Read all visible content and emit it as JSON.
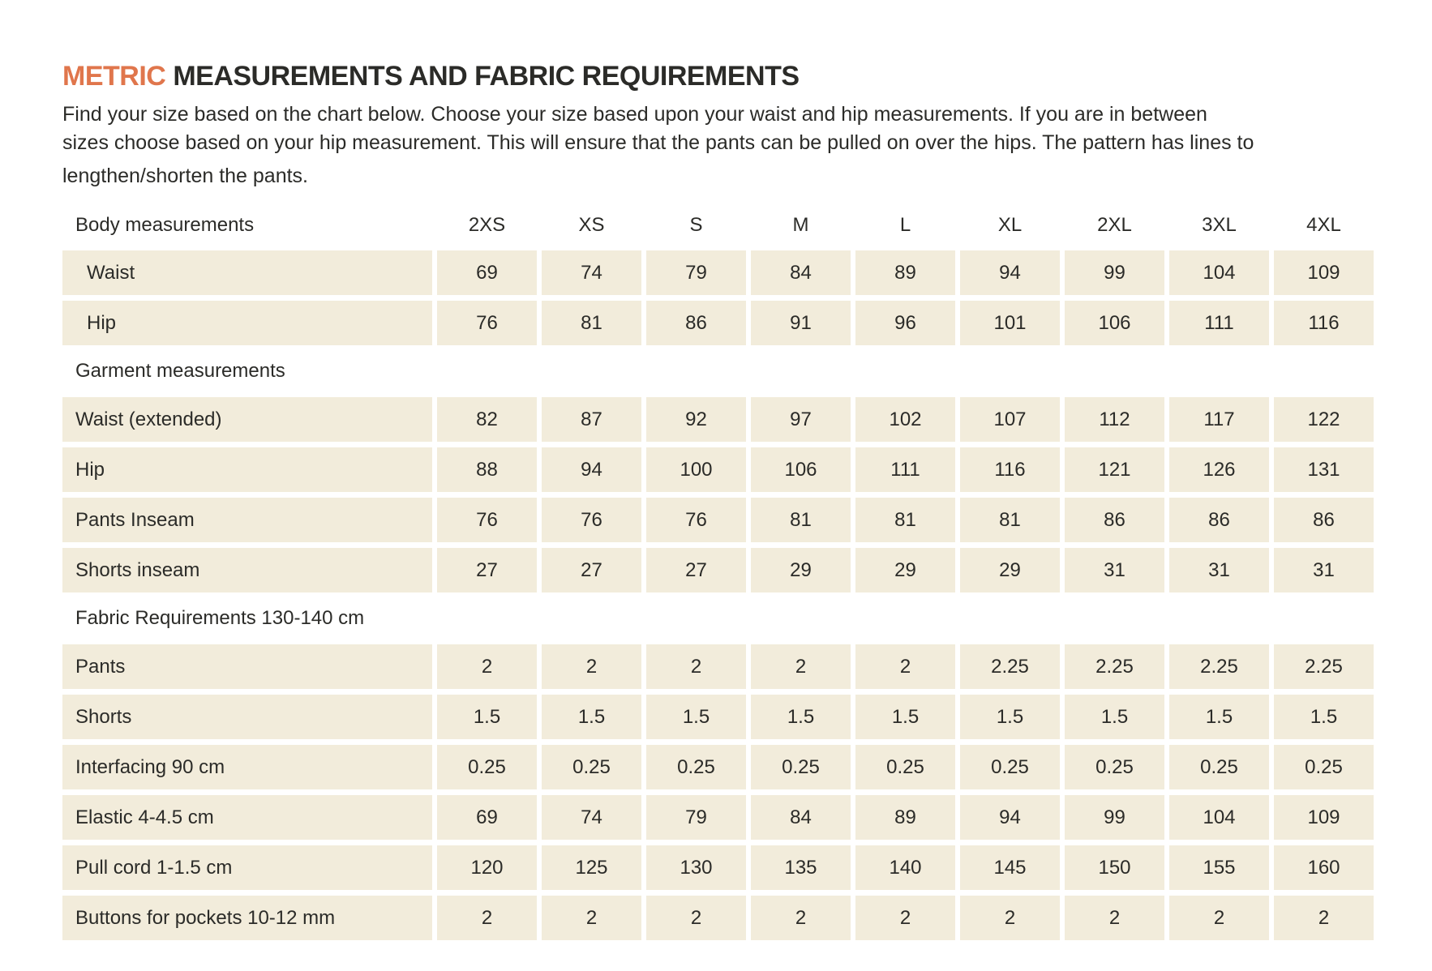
{
  "colors": {
    "accent": "#E0764C",
    "row_background": "#F2ECDB",
    "text": "#2B2B28"
  },
  "header": {
    "title_accent": "METRIC",
    "title_rest": "MEASUREMENTS AND FABRIC REQUIREMENTS",
    "intro_lines": [
      "Find your size based on the chart below. Choose your size based upon your waist and hip measurements. If you are in between",
      "sizes choose based on your hip measurement. This will ensure that the pants can be pulled on over the hips. The pattern has lines to",
      "lengthen/shorten the pants."
    ]
  },
  "table": {
    "size_columns": [
      "2XS",
      "XS",
      "S",
      "M",
      "L",
      "XL",
      "2XL",
      "3XL",
      "4XL"
    ],
    "sections": [
      {
        "label": "Body measurements",
        "rows": [
          {
            "label": "Waist",
            "indent": true,
            "values": [
              "69",
              "74",
              "79",
              "84",
              "89",
              "94",
              "99",
              "104",
              "109"
            ]
          },
          {
            "label": "Hip",
            "indent": true,
            "values": [
              "76",
              "81",
              "86",
              "91",
              "96",
              "101",
              "106",
              "111",
              "116"
            ]
          }
        ]
      },
      {
        "label": "Garment measurements",
        "rows": [
          {
            "label": "Waist (extended)",
            "indent": false,
            "values": [
              "82",
              "87",
              "92",
              "97",
              "102",
              "107",
              "112",
              "117",
              "122"
            ]
          },
          {
            "label": "Hip",
            "indent": false,
            "values": [
              "88",
              "94",
              "100",
              "106",
              "111",
              "116",
              "121",
              "126",
              "131"
            ]
          },
          {
            "label": "Pants Inseam",
            "indent": false,
            "values": [
              "76",
              "76",
              "76",
              "81",
              "81",
              "81",
              "86",
              "86",
              "86"
            ]
          },
          {
            "label": "Shorts inseam",
            "indent": false,
            "values": [
              "27",
              "27",
              "27",
              "29",
              "29",
              "29",
              "31",
              "31",
              "31"
            ]
          }
        ]
      },
      {
        "label": "Fabric Requirements 130-140 cm",
        "rows": [
          {
            "label": "Pants",
            "indent": false,
            "values": [
              "2",
              "2",
              "2",
              "2",
              "2",
              "2.25",
              "2.25",
              "2.25",
              "2.25"
            ]
          },
          {
            "label": "Shorts",
            "indent": false,
            "values": [
              "1.5",
              "1.5",
              "1.5",
              "1.5",
              "1.5",
              "1.5",
              "1.5",
              "1.5",
              "1.5"
            ]
          },
          {
            "label": "Interfacing 90 cm",
            "indent": false,
            "values": [
              "0.25",
              "0.25",
              "0.25",
              "0.25",
              "0.25",
              "0.25",
              "0.25",
              "0.25",
              "0.25"
            ]
          },
          {
            "label": "Elastic 4-4.5 cm",
            "indent": false,
            "values": [
              "69",
              "74",
              "79",
              "84",
              "89",
              "94",
              "99",
              "104",
              "109"
            ]
          },
          {
            "label": "Pull cord 1-1.5 cm",
            "indent": false,
            "values": [
              "120",
              "125",
              "130",
              "135",
              "140",
              "145",
              "150",
              "155",
              "160"
            ]
          },
          {
            "label": "Buttons for pockets 10-12 mm",
            "indent": false,
            "values": [
              "2",
              "2",
              "2",
              "2",
              "2",
              "2",
              "2",
              "2",
              "2"
            ]
          }
        ]
      }
    ]
  }
}
